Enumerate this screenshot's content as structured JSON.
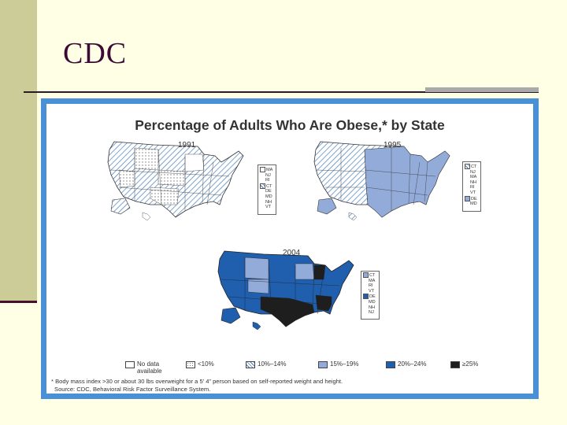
{
  "slide": {
    "title": "CDC"
  },
  "figure": {
    "title": "Percentage of Adults Who Are Obese,* by State",
    "maps": [
      {
        "year": "1991",
        "small_states_key": [
          {
            "states": [
              "MA",
              "NJ",
              "RI"
            ],
            "category": "lt10"
          },
          {
            "states": [
              "CT",
              "DE",
              "MD",
              "NH",
              "VT"
            ],
            "category": "10to14"
          }
        ]
      },
      {
        "year": "1995",
        "small_states_key": [
          {
            "states": [
              "CT",
              "NJ",
              "MA",
              "NH",
              "RI",
              "VT"
            ],
            "category": "10to14"
          },
          {
            "states": [
              "DE",
              "MD"
            ],
            "category": "15to19"
          }
        ]
      },
      {
        "year": "2004",
        "small_states_key": [
          {
            "states": [
              "CT",
              "MA",
              "RI",
              "VT"
            ],
            "category": "15to19"
          },
          {
            "states": [
              "DE",
              "MD",
              "NH",
              "NJ"
            ],
            "category": "20to24"
          }
        ]
      }
    ],
    "legend": [
      {
        "id": "nodata",
        "label": "No data available",
        "label_lines": [
          "No data",
          "available"
        ],
        "color": "#ffffff",
        "pattern": "none"
      },
      {
        "id": "lt10",
        "label": "<10%",
        "label_lines": [
          "<10%"
        ],
        "color": "#ffffff",
        "pattern": "dots"
      },
      {
        "id": "10to14",
        "label": "10%–14%",
        "label_lines": [
          "10%–14%"
        ],
        "color": "#ffffff",
        "pattern": "hatch"
      },
      {
        "id": "15to19",
        "label": "15%–19%",
        "label_lines": [
          "15%–19%"
        ],
        "color": "#93abd9",
        "pattern": "none"
      },
      {
        "id": "20to24",
        "label": "20%–24%",
        "label_lines": [
          "20%–24%"
        ],
        "color": "#1f5fae",
        "pattern": "none"
      },
      {
        "id": "gte25",
        "label": "≥25%",
        "label_lines": [
          "≥25%"
        ],
        "color": "#1e1e1e",
        "pattern": "none"
      }
    ],
    "footnote": {
      "line1": "* Body mass index >30 or about 30 lbs overweight for a 5’ 4” person based on self-reported weight and height.",
      "line2": "Source: CDC, Behavioral Risk Factor Surveillance System."
    }
  }
}
